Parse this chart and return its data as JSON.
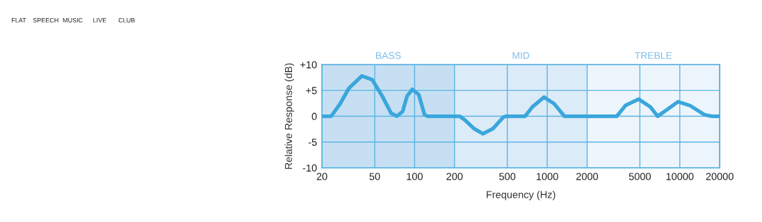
{
  "chart_data": {
    "type": "line",
    "xlabel": "Frequency (Hz)",
    "ylabel": "Relative Response (dB)",
    "log": "x",
    "grid": true,
    "marker": "none",
    "line_style": "solid",
    "xlim": [
      20,
      20000
    ],
    "xticks": [
      20,
      50,
      100,
      200,
      500,
      1000,
      2000,
      5000,
      10000,
      20000
    ],
    "ylim": [
      -10,
      10
    ],
    "yticks": [
      {
        "value": 10,
        "label": "+10"
      },
      {
        "value": 5,
        "label": "+5"
      },
      0,
      -5,
      -10
    ],
    "bands": [
      {
        "axis": "x",
        "from": 20,
        "to": 200,
        "label": "BASS",
        "color": "#c6dff2"
      },
      {
        "axis": "x",
        "from": 200,
        "to": 2000,
        "label": "MID",
        "color": "#dcebf8"
      },
      {
        "axis": "x",
        "from": 2000,
        "to": 20000,
        "label": "TREBLE",
        "color": "#edf5fc"
      }
    ],
    "annotations": [
      "FLAT",
      "SPEECH",
      "MUSIC",
      "LIVE",
      "CLUB"
    ],
    "series": [
      {
        "color": "#3aa6dc",
        "x": [
          20,
          23.5,
          27.4,
          31.9,
          40,
          47.8,
          57,
          66.4,
          73.5,
          81.2,
          87.7,
          96,
          107.4,
          118.8,
          125,
          218,
          241,
          280.5,
          327,
          390,
          466,
          490,
          681,
          773,
          946,
          1129,
          1348,
          3350,
          3900,
          4900,
          6000,
          6810,
          7930,
          9700,
          11880,
          15300,
          17300,
          20000
        ],
        "values": [
          0,
          0,
          2.4,
          5.4,
          7.8,
          7.1,
          3.9,
          0.6,
          0,
          0.9,
          3.9,
          5.2,
          4.2,
          0.3,
          0,
          0,
          -0.8,
          -2.4,
          -3.4,
          -2.4,
          -0.2,
          0,
          0,
          1.8,
          3.7,
          2.4,
          0,
          0,
          2.1,
          3.3,
          1.8,
          0,
          1.2,
          2.8,
          2.1,
          0.3,
          0,
          0
        ]
      }
    ]
  }
}
